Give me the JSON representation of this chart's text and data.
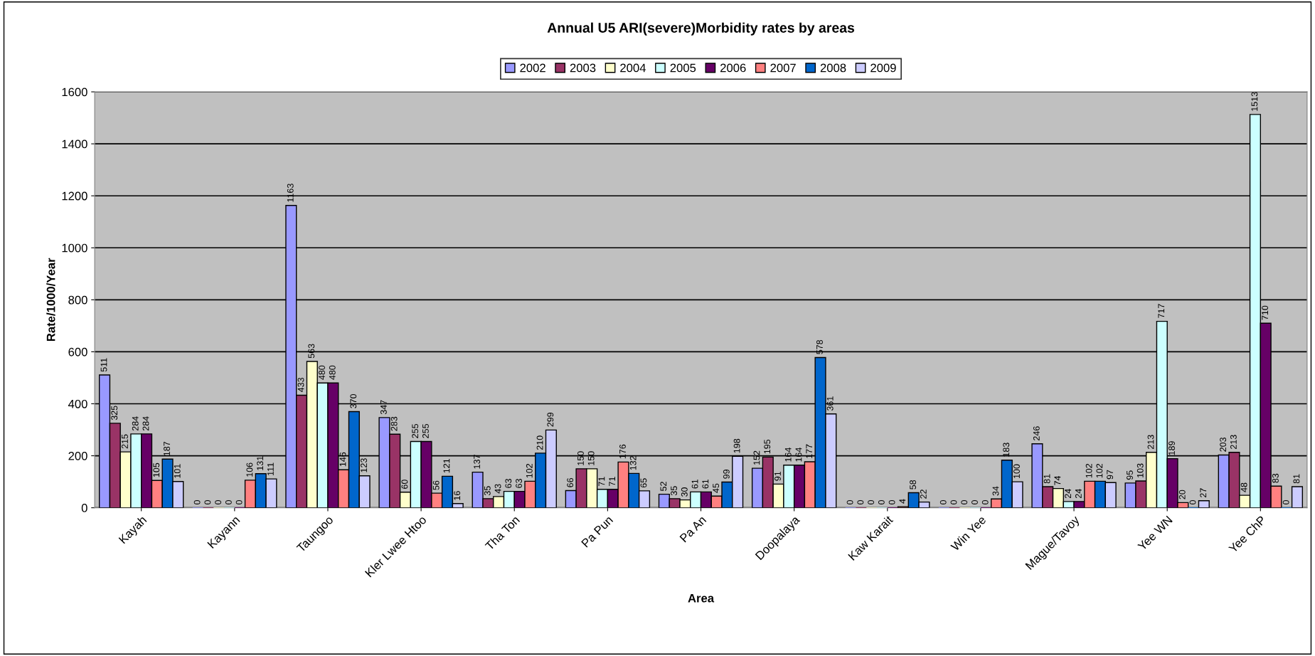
{
  "chart_data": {
    "type": "bar",
    "title": "Annual U5 ARI(severe)Morbidity rates by areas",
    "xlabel": "Area",
    "ylabel": "Rate/1000/Year",
    "categories": [
      "Kayah",
      "Kayann",
      "Taungoo",
      "Kler Lwee Htoo",
      "Tha Ton",
      "Pa Pun",
      "Pa An",
      "Doopalaya",
      "Kaw Karait",
      "Win Yee",
      "Mague/Tavoy",
      "Yee WN",
      "Yee ChP"
    ],
    "series": [
      {
        "name": "2002",
        "color": "#9999ff",
        "values": [
          511,
          0,
          1163,
          347,
          137,
          66,
          52,
          152,
          0,
          0,
          246,
          95,
          203
        ]
      },
      {
        "name": "2003",
        "color": "#993366",
        "values": [
          325,
          0,
          433,
          283,
          35,
          150,
          35,
          195,
          0,
          0,
          81,
          103,
          213
        ]
      },
      {
        "name": "2004",
        "color": "#ffffcc",
        "values": [
          215,
          0,
          563,
          60,
          43,
          150,
          30,
          91,
          0,
          0,
          74,
          213,
          48
        ]
      },
      {
        "name": "2005",
        "color": "#ccffff",
        "values": [
          284,
          0,
          480,
          255,
          63,
          71,
          61,
          164,
          0,
          0,
          24,
          717,
          1513
        ]
      },
      {
        "name": "2006",
        "color": "#660066",
        "values": [
          284,
          0,
          480,
          255,
          63,
          71,
          61,
          164,
          0,
          0,
          24,
          189,
          710
        ]
      },
      {
        "name": "2007",
        "color": "#ff8080",
        "values": [
          105,
          106,
          146,
          56,
          102,
          176,
          45,
          177,
          4,
          34,
          102,
          20,
          83
        ]
      },
      {
        "name": "2008",
        "color": "#0066cc",
        "values": [
          187,
          131,
          370,
          121,
          210,
          132,
          99,
          578,
          58,
          183,
          102,
          0,
          0
        ]
      },
      {
        "name": "2009",
        "color": "#ccccff",
        "values": [
          101,
          111,
          123,
          16,
          299,
          65,
          198,
          361,
          22,
          100,
          97,
          27,
          81
        ]
      }
    ],
    "ylim": [
      0,
      1600
    ],
    "yticks": [
      0,
      200,
      400,
      600,
      800,
      1000,
      1200,
      1400,
      1600
    ],
    "grid": "y",
    "legend": "top",
    "data_labels": true
  }
}
